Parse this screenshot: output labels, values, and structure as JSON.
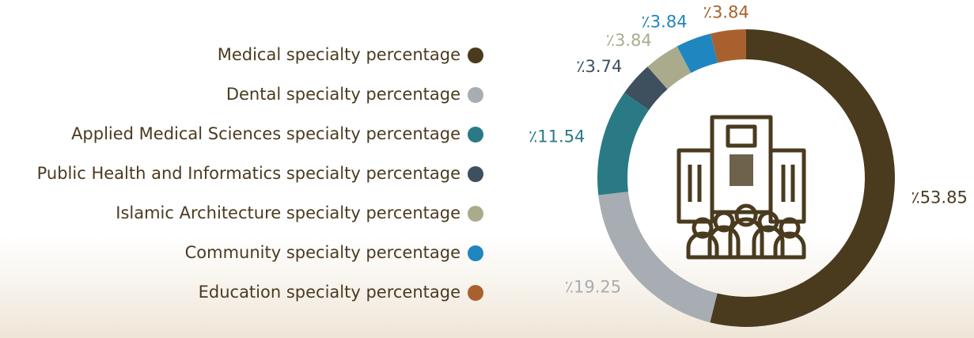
{
  "chart_data": {
    "type": "donut",
    "categories": [
      "Medical specialty percentage",
      "Dental specialty percentage",
      "Applied Medical Sciences specialty percentage",
      "Public Health and Informatics specialty percentage",
      "Islamic Architecture specialty percentage",
      "Community specialty percentage",
      "Education specialty percentage"
    ],
    "values": [
      53.85,
      19.25,
      11.54,
      3.74,
      3.84,
      3.84,
      3.84
    ],
    "value_labels": [
      "٪53.85",
      "٪19.25",
      "٪11.54",
      "٪3.74",
      "٪3.84",
      "٪3.84",
      "٪3.84"
    ],
    "colors": [
      "#4a3b1f",
      "#a8acb3",
      "#2a7a86",
      "#3e4f5e",
      "#aaab8d",
      "#1f86c0",
      "#a8612e"
    ]
  }
}
